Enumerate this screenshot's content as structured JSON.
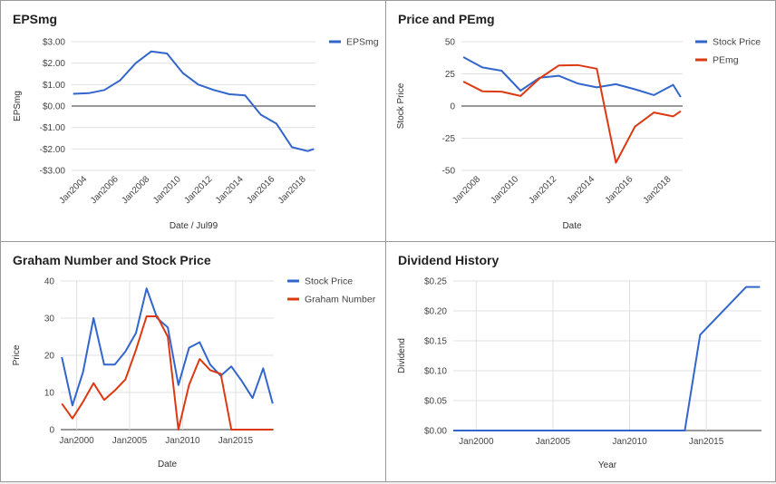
{
  "chart_data": [
    {
      "type": "line",
      "title": "EPSmg",
      "xlabel": "Date / Jul99",
      "ylabel": "EPSmg",
      "ylim": [
        -3,
        3
      ],
      "xlim": [
        2003.0,
        2018.6
      ],
      "yticks": [
        "$3.00",
        "$2.00",
        "$1.00",
        "$0.00",
        "-$1.00",
        "-$2.00",
        "-$3.00"
      ],
      "xticks": [
        "Jan2004",
        "Jan2006",
        "Jan2008",
        "Jan2010",
        "Jan2012",
        "Jan2014",
        "Jan2016",
        "Jan2018"
      ],
      "legend_position": "right",
      "series": [
        {
          "name": "EPSmg",
          "color": "#3366cc",
          "x": [
            2003.1,
            2004.1,
            2005.1,
            2006.1,
            2007.1,
            2008.1,
            2009.1,
            2010.1,
            2011.1,
            2012.1,
            2013.1,
            2014.1,
            2015.1,
            2016.1,
            2017.1,
            2018.1,
            2018.5
          ],
          "y": [
            0.57,
            0.6,
            0.75,
            1.2,
            2.0,
            2.55,
            2.45,
            1.55,
            1.0,
            0.75,
            0.55,
            0.5,
            -0.4,
            -0.82,
            -1.92,
            -2.1,
            -2.0
          ]
        }
      ]
    },
    {
      "type": "line",
      "title": "Price and PEmg",
      "xlabel": "Date",
      "ylabel": "Stock Price",
      "ylim": [
        -50,
        50
      ],
      "xlim": [
        2007.0,
        2018.6
      ],
      "yticks": [
        "50",
        "25",
        "0",
        "-25",
        "-50"
      ],
      "xticks": [
        "Jan2008",
        "Jan2010",
        "Jan2012",
        "Jan2014",
        "Jan2016",
        "Jan2018"
      ],
      "legend_position": "right",
      "series": [
        {
          "name": "Stock Price",
          "color": "#3366cc",
          "x": [
            2007.1,
            2008.1,
            2009.1,
            2010.1,
            2011.1,
            2012.1,
            2013.1,
            2014.1,
            2015.1,
            2016.1,
            2017.1,
            2018.1,
            2018.5
          ],
          "y": [
            38,
            30,
            27.5,
            12,
            22,
            23.5,
            17.5,
            14.5,
            17,
            13,
            8.5,
            16.5,
            7
          ]
        },
        {
          "name": "PEmg",
          "color": "#dc3912",
          "x": [
            2007.1,
            2008.1,
            2009.1,
            2010.1,
            2011.1,
            2012.1,
            2013.1,
            2014.1,
            2015.1,
            2016.1,
            2017.1,
            2018.1,
            2018.5
          ],
          "y": [
            19,
            11.5,
            11.2,
            7.8,
            21.5,
            31.5,
            31.8,
            29,
            -44,
            -16,
            -5,
            -8,
            -4
          ]
        }
      ]
    },
    {
      "type": "line",
      "title": "Graham Number and Stock Price",
      "xlabel": "Date",
      "ylabel": "Price",
      "ylim": [
        0,
        40
      ],
      "xlim": [
        1998.5,
        2018.6
      ],
      "yticks": [
        "40",
        "30",
        "20",
        "10",
        "0"
      ],
      "xticks": [
        "Jan2000",
        "Jan2005",
        "Jan2010",
        "Jan2015"
      ],
      "legend_position": "right",
      "series": [
        {
          "name": "Stock Price",
          "color": "#3366cc",
          "x": [
            1998.6,
            1999.6,
            2000.6,
            2001.6,
            2002.6,
            2003.6,
            2004.6,
            2005.6,
            2006.6,
            2007.6,
            2008.6,
            2009.6,
            2010.6,
            2011.6,
            2012.6,
            2013.6,
            2014.6,
            2015.6,
            2016.6,
            2017.6,
            2018.5
          ],
          "y": [
            19.5,
            6.5,
            15.5,
            30,
            17.5,
            17.5,
            21,
            26,
            38,
            30,
            27.5,
            12,
            22,
            23.5,
            17.5,
            14.5,
            17,
            13,
            8.5,
            16.5,
            7
          ]
        },
        {
          "name": "Graham Number",
          "color": "#dc3912",
          "x": [
            1998.6,
            1999.6,
            2000.6,
            2001.6,
            2002.6,
            2003.6,
            2004.6,
            2005.6,
            2006.6,
            2007.6,
            2008.6,
            2009.6,
            2010.6,
            2011.6,
            2012.6,
            2013.6,
            2014.6,
            2015.6,
            2016.6,
            2017.6,
            2018.5
          ],
          "y": [
            7,
            3,
            7.5,
            12.5,
            8,
            10.5,
            13.5,
            21.5,
            30.5,
            30.5,
            25,
            0,
            12,
            19,
            16,
            15,
            0,
            0,
            0,
            0,
            0
          ]
        }
      ]
    },
    {
      "type": "line",
      "title": "Dividend History",
      "xlabel": "Year",
      "ylabel": "Dividend",
      "ylim": [
        0,
        0.25
      ],
      "xlim": [
        1998.5,
        2018.6
      ],
      "yticks": [
        "$0.25",
        "$0.20",
        "$0.15",
        "$0.10",
        "$0.05",
        "$0.00"
      ],
      "xticks": [
        "Jan2000",
        "Jan2005",
        "Jan2010",
        "Jan2015"
      ],
      "series": [
        {
          "name": "",
          "color": "#3366cc",
          "x": [
            1998.5,
            2013.6,
            2014.6,
            2017.6,
            2018.5
          ],
          "y": [
            0,
            0,
            0.16,
            0.24,
            0.24
          ]
        }
      ]
    }
  ]
}
